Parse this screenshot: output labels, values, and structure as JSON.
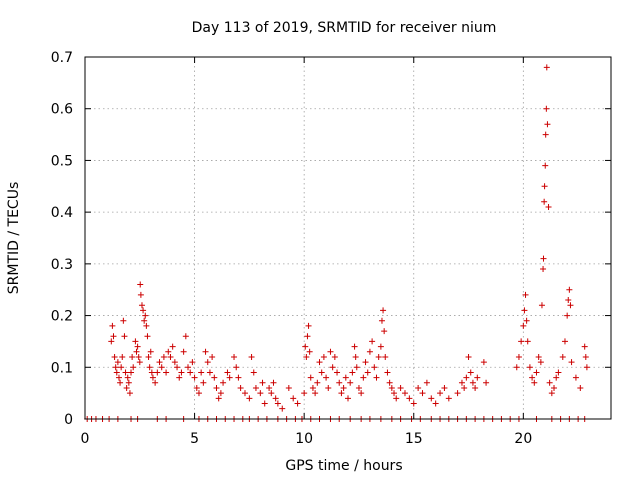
{
  "chart_data": {
    "type": "scatter",
    "title": "Day 113 of 2019, SRMTID for receiver nium",
    "xlabel": "GPS time / hours",
    "ylabel": "SRMTID / TECUs",
    "xlim": [
      0,
      24
    ],
    "ylim": [
      0,
      0.7
    ],
    "xticks": [
      0,
      5,
      10,
      15,
      20
    ],
    "xtick_labels": [
      "0",
      "5",
      "10",
      "15",
      "20"
    ],
    "yticks": [
      0,
      0.1,
      0.2,
      0.3,
      0.4,
      0.5,
      0.6,
      0.7
    ],
    "ytick_labels": [
      "0",
      "0.1",
      "0.2",
      "0.3",
      "0.4",
      "0.5",
      "0.6",
      "0.7"
    ],
    "grid": true,
    "marker": "+",
    "color": "#cc0000",
    "series": [
      {
        "name": "SRMTID",
        "points": [
          [
            0.1,
            0
          ],
          [
            0.3,
            0
          ],
          [
            0.5,
            0
          ],
          [
            0.8,
            0
          ],
          [
            1.1,
            0
          ],
          [
            1.5,
            0
          ],
          [
            2.1,
            0
          ],
          [
            2.4,
            0
          ],
          [
            3.3,
            0
          ],
          [
            3.7,
            0
          ],
          [
            4.5,
            0
          ],
          [
            5.2,
            0
          ],
          [
            5.6,
            0
          ],
          [
            6.0,
            0
          ],
          [
            6.4,
            0
          ],
          [
            6.8,
            0
          ],
          [
            7.2,
            0
          ],
          [
            7.5,
            0
          ],
          [
            7.9,
            0
          ],
          [
            8.3,
            0
          ],
          [
            8.8,
            0
          ],
          [
            9.2,
            0
          ],
          [
            9.6,
            0
          ],
          [
            9.9,
            0
          ],
          [
            10.3,
            0
          ],
          [
            10.7,
            0
          ],
          [
            11.2,
            0
          ],
          [
            11.6,
            0
          ],
          [
            12.1,
            0
          ],
          [
            12.6,
            0
          ],
          [
            13.0,
            0
          ],
          [
            13.5,
            0
          ],
          [
            14.0,
            0
          ],
          [
            14.4,
            0
          ],
          [
            14.9,
            0
          ],
          [
            15.3,
            0
          ],
          [
            15.8,
            0
          ],
          [
            16.2,
            0
          ],
          [
            16.6,
            0
          ],
          [
            17.0,
            0
          ],
          [
            17.4,
            0
          ],
          [
            17.8,
            0
          ],
          [
            18.2,
            0
          ],
          [
            18.6,
            0
          ],
          [
            19.0,
            0
          ],
          [
            19.4,
            0
          ],
          [
            19.8,
            0
          ],
          [
            20.6,
            0
          ],
          [
            21.3,
            0
          ],
          [
            21.7,
            0
          ],
          [
            22.1,
            0
          ],
          [
            22.5,
            0
          ],
          [
            22.8,
            0
          ],
          [
            1.2,
            0.15
          ],
          [
            1.25,
            0.18
          ],
          [
            1.3,
            0.16
          ],
          [
            1.35,
            0.12
          ],
          [
            1.4,
            0.1
          ],
          [
            1.45,
            0.09
          ],
          [
            1.5,
            0.11
          ],
          [
            1.55,
            0.08
          ],
          [
            1.6,
            0.07
          ],
          [
            1.65,
            0.1
          ],
          [
            1.7,
            0.12
          ],
          [
            1.75,
            0.19
          ],
          [
            1.8,
            0.16
          ],
          [
            1.85,
            0.09
          ],
          [
            1.9,
            0.06
          ],
          [
            1.95,
            0.08
          ],
          [
            2.0,
            0.07
          ],
          [
            2.05,
            0.05
          ],
          [
            2.1,
            0.09
          ],
          [
            2.15,
            0.12
          ],
          [
            2.2,
            0.1
          ],
          [
            2.3,
            0.15
          ],
          [
            2.35,
            0.13
          ],
          [
            2.4,
            0.14
          ],
          [
            2.45,
            0.12
          ],
          [
            2.5,
            0.11
          ],
          [
            2.52,
            0.26
          ],
          [
            2.55,
            0.24
          ],
          [
            2.6,
            0.22
          ],
          [
            2.65,
            0.21
          ],
          [
            2.7,
            0.19
          ],
          [
            2.75,
            0.2
          ],
          [
            2.8,
            0.18
          ],
          [
            2.85,
            0.16
          ],
          [
            2.9,
            0.12
          ],
          [
            2.95,
            0.1
          ],
          [
            3.0,
            0.13
          ],
          [
            3.05,
            0.09
          ],
          [
            3.1,
            0.08
          ],
          [
            3.2,
            0.07
          ],
          [
            3.3,
            0.09
          ],
          [
            3.4,
            0.11
          ],
          [
            3.5,
            0.1
          ],
          [
            3.6,
            0.12
          ],
          [
            3.7,
            0.09
          ],
          [
            3.8,
            0.13
          ],
          [
            3.9,
            0.12
          ],
          [
            4.0,
            0.14
          ],
          [
            4.1,
            0.11
          ],
          [
            4.2,
            0.1
          ],
          [
            4.3,
            0.08
          ],
          [
            4.4,
            0.09
          ],
          [
            4.5,
            0.13
          ],
          [
            4.6,
            0.16
          ],
          [
            4.7,
            0.1
          ],
          [
            4.8,
            0.09
          ],
          [
            4.9,
            0.11
          ],
          [
            5.0,
            0.08
          ],
          [
            5.1,
            0.06
          ],
          [
            5.2,
            0.05
          ],
          [
            5.3,
            0.09
          ],
          [
            5.4,
            0.07
          ],
          [
            5.5,
            0.13
          ],
          [
            5.6,
            0.11
          ],
          [
            5.7,
            0.09
          ],
          [
            5.8,
            0.12
          ],
          [
            5.9,
            0.08
          ],
          [
            6.0,
            0.06
          ],
          [
            6.1,
            0.04
          ],
          [
            6.2,
            0.05
          ],
          [
            6.3,
            0.07
          ],
          [
            6.5,
            0.09
          ],
          [
            6.6,
            0.08
          ],
          [
            6.8,
            0.12
          ],
          [
            6.9,
            0.1
          ],
          [
            7.0,
            0.08
          ],
          [
            7.1,
            0.06
          ],
          [
            7.3,
            0.05
          ],
          [
            7.5,
            0.04
          ],
          [
            7.6,
            0.12
          ],
          [
            7.7,
            0.09
          ],
          [
            7.8,
            0.06
          ],
          [
            8.0,
            0.05
          ],
          [
            8.1,
            0.07
          ],
          [
            8.2,
            0.03
          ],
          [
            8.4,
            0.06
          ],
          [
            8.5,
            0.05
          ],
          [
            8.6,
            0.07
          ],
          [
            8.7,
            0.04
          ],
          [
            8.8,
            0.03
          ],
          [
            9.0,
            0.02
          ],
          [
            9.3,
            0.06
          ],
          [
            9.5,
            0.04
          ],
          [
            9.7,
            0.03
          ],
          [
            10.0,
            0.05
          ],
          [
            10.05,
            0.14
          ],
          [
            10.1,
            0.12
          ],
          [
            10.15,
            0.16
          ],
          [
            10.2,
            0.18
          ],
          [
            10.25,
            0.13
          ],
          [
            10.3,
            0.08
          ],
          [
            10.4,
            0.06
          ],
          [
            10.5,
            0.05
          ],
          [
            10.6,
            0.07
          ],
          [
            10.7,
            0.11
          ],
          [
            10.8,
            0.09
          ],
          [
            10.9,
            0.12
          ],
          [
            11.0,
            0.08
          ],
          [
            11.1,
            0.06
          ],
          [
            11.2,
            0.13
          ],
          [
            11.3,
            0.1
          ],
          [
            11.4,
            0.12
          ],
          [
            11.5,
            0.09
          ],
          [
            11.6,
            0.07
          ],
          [
            11.7,
            0.05
          ],
          [
            11.8,
            0.06
          ],
          [
            11.9,
            0.08
          ],
          [
            12.0,
            0.04
          ],
          [
            12.1,
            0.07
          ],
          [
            12.2,
            0.09
          ],
          [
            12.3,
            0.14
          ],
          [
            12.35,
            0.12
          ],
          [
            12.4,
            0.1
          ],
          [
            12.5,
            0.06
          ],
          [
            12.6,
            0.05
          ],
          [
            12.7,
            0.08
          ],
          [
            12.8,
            0.11
          ],
          [
            12.9,
            0.09
          ],
          [
            13.0,
            0.13
          ],
          [
            13.1,
            0.15
          ],
          [
            13.2,
            0.1
          ],
          [
            13.3,
            0.08
          ],
          [
            13.4,
            0.12
          ],
          [
            13.5,
            0.14
          ],
          [
            13.55,
            0.19
          ],
          [
            13.6,
            0.21
          ],
          [
            13.65,
            0.17
          ],
          [
            13.7,
            0.12
          ],
          [
            13.8,
            0.09
          ],
          [
            13.9,
            0.07
          ],
          [
            14.0,
            0.06
          ],
          [
            14.1,
            0.05
          ],
          [
            14.2,
            0.04
          ],
          [
            14.4,
            0.06
          ],
          [
            14.6,
            0.05
          ],
          [
            14.8,
            0.04
          ],
          [
            15.0,
            0.03
          ],
          [
            15.2,
            0.06
          ],
          [
            15.4,
            0.05
          ],
          [
            15.6,
            0.07
          ],
          [
            15.8,
            0.04
          ],
          [
            16.0,
            0.03
          ],
          [
            16.2,
            0.05
          ],
          [
            16.4,
            0.06
          ],
          [
            16.6,
            0.04
          ],
          [
            17.0,
            0.05
          ],
          [
            17.2,
            0.07
          ],
          [
            17.3,
            0.06
          ],
          [
            17.4,
            0.08
          ],
          [
            17.5,
            0.12
          ],
          [
            17.6,
            0.09
          ],
          [
            17.7,
            0.07
          ],
          [
            17.8,
            0.06
          ],
          [
            17.9,
            0.08
          ],
          [
            18.2,
            0.11
          ],
          [
            18.3,
            0.07
          ],
          [
            19.7,
            0.1
          ],
          [
            19.8,
            0.12
          ],
          [
            19.9,
            0.15
          ],
          [
            20.0,
            0.18
          ],
          [
            20.05,
            0.21
          ],
          [
            20.1,
            0.24
          ],
          [
            20.15,
            0.19
          ],
          [
            20.2,
            0.15
          ],
          [
            20.3,
            0.1
          ],
          [
            20.4,
            0.08
          ],
          [
            20.5,
            0.07
          ],
          [
            20.6,
            0.09
          ],
          [
            20.7,
            0.12
          ],
          [
            20.8,
            0.11
          ],
          [
            20.85,
            0.22
          ],
          [
            20.9,
            0.29
          ],
          [
            20.92,
            0.31
          ],
          [
            20.95,
            0.42
          ],
          [
            20.97,
            0.45
          ],
          [
            21.0,
            0.49
          ],
          [
            21.02,
            0.55
          ],
          [
            21.05,
            0.6
          ],
          [
            21.07,
            0.68
          ],
          [
            21.1,
            0.57
          ],
          [
            21.15,
            0.41
          ],
          [
            21.2,
            0.07
          ],
          [
            21.3,
            0.05
          ],
          [
            21.4,
            0.06
          ],
          [
            21.5,
            0.08
          ],
          [
            21.6,
            0.09
          ],
          [
            21.8,
            0.12
          ],
          [
            21.9,
            0.15
          ],
          [
            22.0,
            0.2
          ],
          [
            22.05,
            0.23
          ],
          [
            22.1,
            0.25
          ],
          [
            22.15,
            0.22
          ],
          [
            22.2,
            0.11
          ],
          [
            22.4,
            0.08
          ],
          [
            22.6,
            0.06
          ],
          [
            22.8,
            0.14
          ],
          [
            22.85,
            0.12
          ],
          [
            22.9,
            0.1
          ]
        ]
      }
    ]
  }
}
